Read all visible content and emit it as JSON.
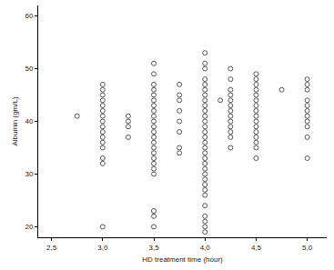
{
  "chart_data": {
    "type": "scatter",
    "x_label": "HD treatment time (hour)",
    "y_label": "Albumin (gm/L)",
    "marker": "circle-open",
    "color": "#555555",
    "grid": false,
    "x": [
      2.75,
      3.0,
      3.0,
      3.0,
      3.0,
      3.0,
      3.0,
      3.0,
      3.0,
      3.0,
      3.0,
      3.0,
      3.0,
      3.0,
      3.0,
      3.0,
      3.0,
      3.25,
      3.25,
      3.25,
      3.25,
      3.5,
      3.5,
      3.5,
      3.5,
      3.5,
      3.5,
      3.5,
      3.5,
      3.5,
      3.5,
      3.5,
      3.5,
      3.5,
      3.5,
      3.5,
      3.5,
      3.5,
      3.5,
      3.5,
      3.5,
      3.5,
      3.5,
      3.5,
      3.75,
      3.75,
      3.75,
      3.75,
      3.75,
      3.75,
      3.75,
      3.75,
      4.0,
      4.0,
      4.0,
      4.0,
      4.0,
      4.0,
      4.0,
      4.0,
      4.0,
      4.0,
      4.0,
      4.0,
      4.0,
      4.0,
      4.0,
      4.0,
      4.0,
      4.0,
      4.0,
      4.0,
      4.0,
      4.0,
      4.0,
      4.0,
      4.0,
      4.0,
      4.0,
      4.0,
      4.0,
      4.0,
      4.0,
      4.15,
      4.25,
      4.25,
      4.25,
      4.25,
      4.25,
      4.25,
      4.25,
      4.25,
      4.25,
      4.25,
      4.25,
      4.25,
      4.25,
      4.5,
      4.5,
      4.5,
      4.5,
      4.5,
      4.5,
      4.5,
      4.5,
      4.5,
      4.5,
      4.5,
      4.5,
      4.5,
      4.5,
      4.5,
      4.5,
      4.75,
      5.0,
      5.0,
      5.0,
      5.0,
      5.0,
      5.0,
      5.0,
      5.0,
      5.0,
      5.0,
      5.0
    ],
    "values": [
      41,
      20,
      32,
      33,
      35,
      36,
      37,
      38,
      39,
      40,
      41,
      42,
      43,
      44,
      45,
      46,
      47,
      37,
      39,
      40,
      41,
      20,
      22,
      23,
      30,
      31,
      32,
      33,
      34,
      35,
      36,
      37,
      38,
      39,
      40,
      41,
      42,
      43,
      44,
      45,
      46,
      47,
      49,
      51,
      34,
      35,
      38,
      40,
      42,
      44,
      45,
      47,
      19,
      20,
      21,
      22,
      24,
      26,
      27,
      28,
      29,
      30,
      31,
      32,
      33,
      34,
      35,
      36,
      37,
      38,
      39,
      40,
      41,
      42,
      43,
      44,
      45,
      46,
      47,
      48,
      50,
      51,
      53,
      44,
      35,
      37,
      38,
      39,
      40,
      41,
      42,
      43,
      44,
      45,
      46,
      48,
      50,
      33,
      35,
      36,
      37,
      38,
      39,
      40,
      41,
      42,
      43,
      44,
      45,
      46,
      47,
      48,
      49,
      46,
      33,
      37,
      39,
      40,
      41,
      42,
      43,
      44,
      46,
      47,
      48
    ],
    "xlim": [
      2.37,
      5.19
    ],
    "ylim": [
      18,
      62
    ],
    "xticks": [
      {
        "value": 2.5,
        "label": "2,5"
      },
      {
        "value": 3.0,
        "label": "3,0"
      },
      {
        "value": 3.5,
        "label": "3,5"
      },
      {
        "value": 4.0,
        "label": "4,0"
      },
      {
        "value": 4.5,
        "label": "4,5"
      },
      {
        "value": 5.0,
        "label": "5,0"
      }
    ],
    "yticks": [
      20,
      30,
      40,
      50,
      60
    ]
  }
}
